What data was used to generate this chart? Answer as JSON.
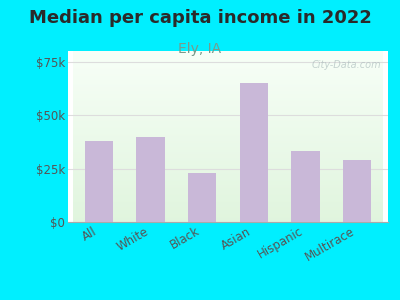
{
  "title": "Median per capita income in 2022",
  "subtitle": "Ely, IA",
  "categories": [
    "All",
    "White",
    "Black",
    "Asian",
    "Hispanic",
    "Multirace"
  ],
  "values": [
    38000,
    40000,
    23000,
    65000,
    33000,
    29000
  ],
  "bar_color": "#c9b8d8",
  "background_outer": "#00efff",
  "title_color": "#2a2a2a",
  "subtitle_color": "#7a9a8a",
  "tick_label_color": "#555555",
  "axis_label_color": "#555555",
  "ylim": [
    0,
    80000
  ],
  "yticks": [
    0,
    25000,
    50000,
    75000
  ],
  "ytick_labels": [
    "$0",
    "$25k",
    "$50k",
    "$75k"
  ],
  "title_fontsize": 13,
  "subtitle_fontsize": 10,
  "tick_fontsize": 8.5,
  "watermark": "City-Data.com",
  "grad_colors": [
    "#c8e6c0",
    "#f5fff5",
    "#ffffff"
  ],
  "grid_color": "#dddddd"
}
